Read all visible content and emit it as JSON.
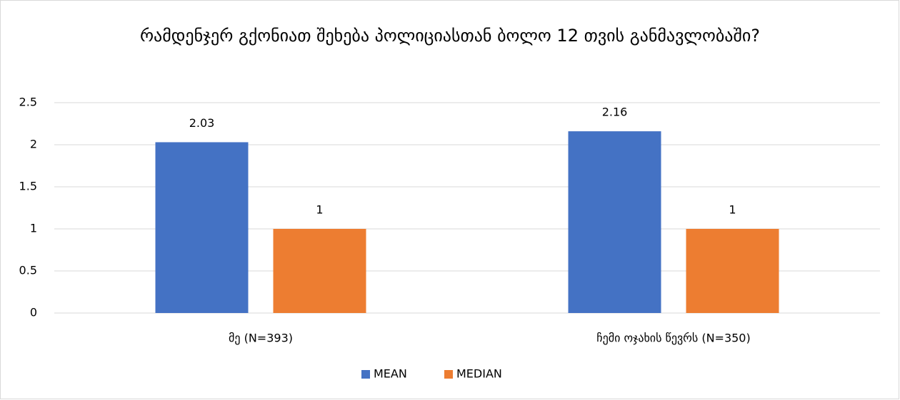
{
  "chart_data": {
    "type": "bar",
    "title": "რამდენჯერ გქონიათ შეხება პოლიციასთან ბოლო 12 თვის განმავლობაში?",
    "categories": [
      "მე (N=393)",
      "ჩემი ოჯახის წევრს (N=350)"
    ],
    "series": [
      {
        "name": "MEAN",
        "color": "#4472c4",
        "values": [
          2.03,
          2.16
        ]
      },
      {
        "name": "MEDIAN",
        "color": "#ed7d31",
        "values": [
          1,
          1
        ]
      }
    ],
    "ylim": [
      0,
      2.5
    ],
    "yticks": [
      0,
      0.5,
      1,
      1.5,
      2,
      2.5
    ],
    "grid": true,
    "legend": "bottom"
  }
}
